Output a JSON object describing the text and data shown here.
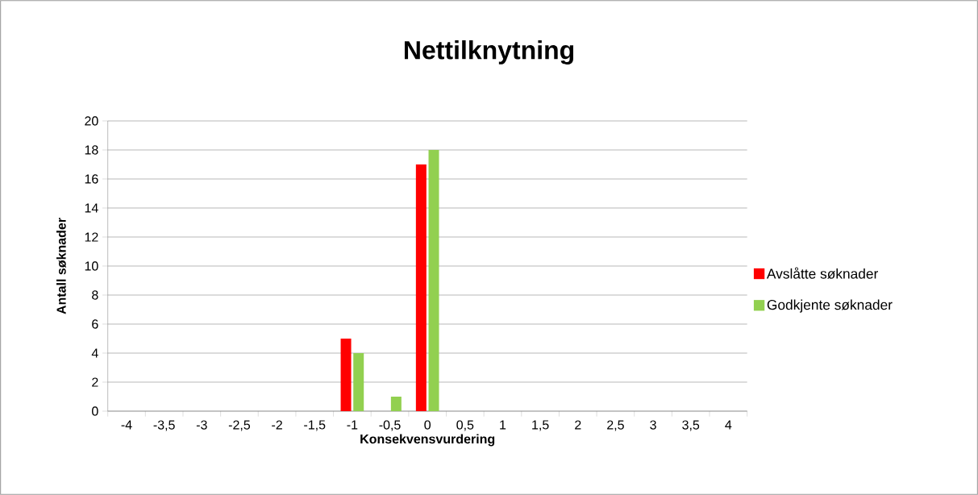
{
  "chart_data": {
    "type": "bar",
    "title": "Nettilknytning",
    "xlabel": "Konsekvensvurdering",
    "ylabel": "Antall søknader",
    "categories": [
      "-4",
      "-3,5",
      "-3",
      "-2,5",
      "-2",
      "-1,5",
      "-1",
      "-0,5",
      "0",
      "0,5",
      "1",
      "1,5",
      "2",
      "2,5",
      "3",
      "3,5",
      "4"
    ],
    "series": [
      {
        "name": "Avslåtte søknader",
        "color": "#ff0000",
        "values": [
          0,
          0,
          0,
          0,
          0,
          0,
          5,
          0,
          17,
          0,
          0,
          0,
          0,
          0,
          0,
          0,
          0
        ]
      },
      {
        "name": "Godkjente søknader",
        "color": "#92d050",
        "values": [
          0,
          0,
          0,
          0,
          0,
          0,
          4,
          1,
          18,
          0,
          0,
          0,
          0,
          0,
          0,
          0,
          0
        ]
      }
    ],
    "ylim": [
      0,
      20
    ],
    "yticks": [
      0,
      2,
      4,
      6,
      8,
      10,
      12,
      14,
      16,
      18,
      20
    ],
    "grid": "y",
    "legend": "right"
  }
}
